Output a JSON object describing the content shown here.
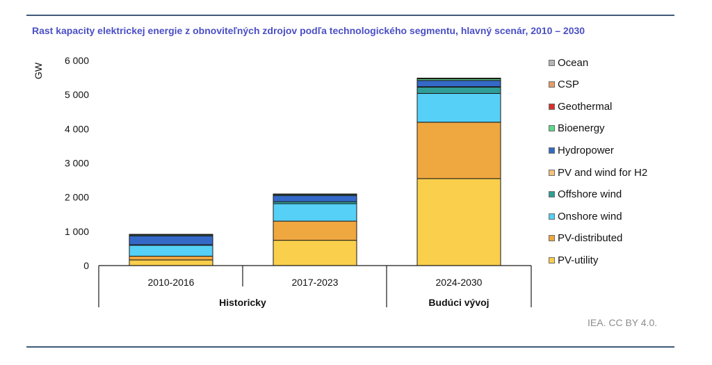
{
  "title": "Rast kapacity elektrickej energie z obnoviteľných zdrojov podľa technologického segmentu, hlavný scenár, 2010 – 2030",
  "credit": "IEA. CC BY 4.0.",
  "chart_data": {
    "type": "bar",
    "stacked": true,
    "title": "Rast kapacity elektrickej energie z obnoviteľných zdrojov podľa technologického segmentu, hlavný scenár, 2010 – 2030",
    "xlabel": "",
    "ylabel": "GW",
    "ylim": [
      0,
      6000
    ],
    "yticks": [
      0,
      1000,
      2000,
      3000,
      4000,
      5000,
      6000
    ],
    "ytick_labels": [
      "0",
      "1 000",
      "2 000",
      "3 000",
      "4 000",
      "5 000",
      "6 000"
    ],
    "grid": false,
    "legend_position": "right",
    "categories": [
      "2010-2016",
      "2017-2023",
      "2024-2030"
    ],
    "groups": [
      {
        "label": "Historicky",
        "categories": [
          "2010-2016",
          "2017-2023"
        ]
      },
      {
        "label": "Budúci vývoj",
        "categories": [
          "2024-2030"
        ]
      }
    ],
    "series": [
      {
        "name": "PV-utility",
        "color": "#f9cf4b",
        "values": [
          165,
          740,
          2545
        ]
      },
      {
        "name": "PV-distributed",
        "color": "#efa73f",
        "values": [
          110,
          560,
          1650
        ]
      },
      {
        "name": "Onshore wind",
        "color": "#56d0f6",
        "values": [
          320,
          510,
          840
        ]
      },
      {
        "name": "Offshore wind",
        "color": "#2f9e97",
        "values": [
          15,
          60,
          190
        ]
      },
      {
        "name": "PV and wind for H2",
        "color": "#f5c27c",
        "values": [
          0,
          0,
          10
        ]
      },
      {
        "name": "Hydropower",
        "color": "#3569c8",
        "values": [
          260,
          180,
          180
        ]
      },
      {
        "name": "Bioenergy",
        "color": "#5ed88a",
        "values": [
          40,
          40,
          50
        ]
      },
      {
        "name": "Geothermal",
        "color": "#d9312b",
        "values": [
          3,
          4,
          12
        ]
      },
      {
        "name": "CSP",
        "color": "#e79d6a",
        "values": [
          2,
          1,
          5
        ]
      },
      {
        "name": "Ocean",
        "color": "#b5b5b5",
        "values": [
          0,
          0,
          2
        ]
      }
    ]
  }
}
